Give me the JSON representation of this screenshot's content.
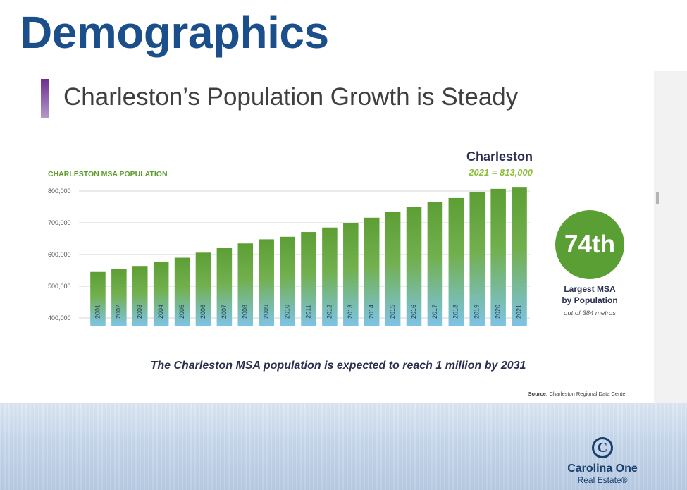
{
  "page": {
    "title": "Demographics"
  },
  "slide": {
    "title": "Charleston’s Population Growth is Steady",
    "chart_label": "CHARLESTON MSA POPULATION",
    "callout_city": "Charleston",
    "callout_value": "2021 = 813,000",
    "rank": "74th",
    "rank_label_line1": "Largest MSA",
    "rank_label_line2": "by Population",
    "rank_sub": "out of 384 metros",
    "caption": "The Charleston MSA population is expected to reach 1 million by 2031",
    "source_prefix": "Source:",
    "source_text": "Charleston Regional Data Center"
  },
  "logo": {
    "mark": "C",
    "name": "Carolina One",
    "sub": "Real Estate®"
  },
  "colors": {
    "title": "#1a4f8b",
    "bar_top": "#5d9e34",
    "bar_bottom": "#7ec3e4",
    "accent": "#6b2f8f",
    "rank_circle": "#5a9f33"
  },
  "chart_data": {
    "type": "bar",
    "title": "CHARLESTON MSA POPULATION",
    "categories": [
      "2001",
      "2002",
      "2003",
      "2004",
      "2005",
      "2006",
      "2007",
      "2008",
      "2009",
      "2010",
      "2011",
      "2012",
      "2013",
      "2014",
      "2015",
      "2016",
      "2017",
      "2018",
      "2019",
      "2020",
      "2021"
    ],
    "values": [
      545000,
      554000,
      564000,
      577000,
      590000,
      606000,
      620000,
      635000,
      648000,
      656000,
      671000,
      685000,
      700000,
      716000,
      734000,
      750000,
      765000,
      778000,
      797000,
      807000,
      813000
    ],
    "yticks": [
      400000,
      500000,
      600000,
      700000,
      800000
    ],
    "ytick_labels": [
      "400,000",
      "500,000",
      "600,000",
      "700,000",
      "800,000"
    ],
    "ylim": [
      400000,
      800000
    ],
    "xlabel": "",
    "ylabel": "",
    "grid": true,
    "legend": "none"
  }
}
